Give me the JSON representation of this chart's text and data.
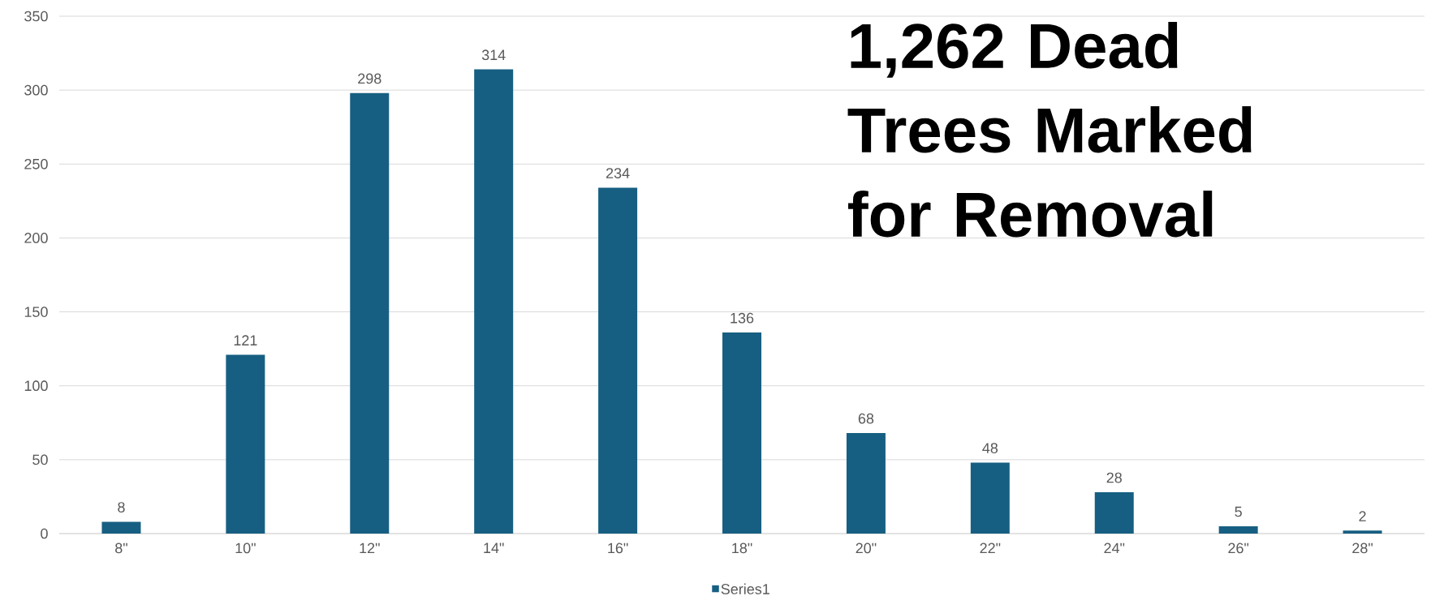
{
  "chart_data": {
    "type": "bar",
    "title": "1,262 Dead Trees Marked for Removal",
    "categories": [
      "8\"",
      "10\"",
      "12\"",
      "14\"",
      "16\"",
      "18\"",
      "20\"",
      "22\"",
      "24\"",
      "26\"",
      "28\""
    ],
    "series": [
      {
        "name": "Series1",
        "color": "#175f82",
        "values": [
          8,
          121,
          298,
          314,
          234,
          136,
          68,
          48,
          28,
          5,
          2
        ]
      }
    ],
    "ylim": [
      0,
      350
    ],
    "yticks": [
      0,
      50,
      100,
      150,
      200,
      250,
      300,
      350
    ],
    "grid": "y",
    "data_labels": true,
    "legend": "bottom"
  }
}
